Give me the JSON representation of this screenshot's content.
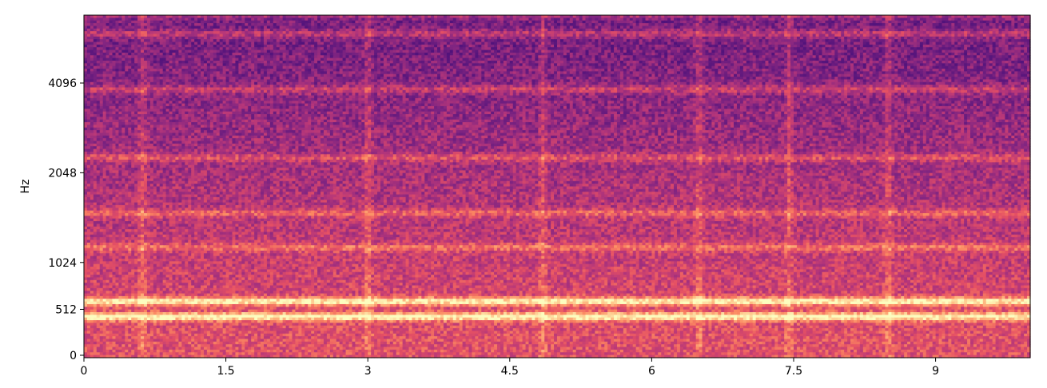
{
  "chart_data": {
    "type": "heatmap",
    "title": "",
    "xlabel": "",
    "ylabel": "Hz",
    "xlim": [
      0,
      10
    ],
    "x_ticks": [
      {
        "value": 0,
        "label": "0"
      },
      {
        "value": 1.5,
        "label": "1.5"
      },
      {
        "value": 3,
        "label": "3"
      },
      {
        "value": 4.5,
        "label": "4.5"
      },
      {
        "value": 6,
        "label": "6"
      },
      {
        "value": 7.5,
        "label": "7.5"
      },
      {
        "value": 9,
        "label": "9"
      }
    ],
    "y_scale": "symlog",
    "ylim": [
      0,
      11025
    ],
    "y_ticks": [
      {
        "value": 0,
        "label": "0"
      },
      {
        "value": 512,
        "label": "512"
      },
      {
        "value": 1024,
        "label": "1024"
      },
      {
        "value": 2048,
        "label": "2048"
      },
      {
        "value": 4096,
        "label": "4096"
      }
    ],
    "colormap": "magma",
    "grid": false,
    "features": {
      "strong_bands_hz": [
        430,
        600
      ],
      "moderate_bands_hz": [
        3900,
        6000,
        7000,
        2300,
        1500,
        1150
      ],
      "vertical_events_s": [
        0.62,
        3.0,
        4.85,
        6.5,
        7.45,
        8.5
      ]
    }
  }
}
